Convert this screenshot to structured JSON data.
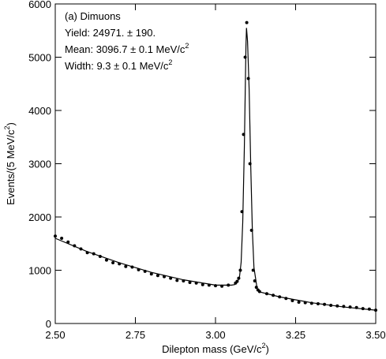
{
  "chart_data": {
    "type": "scatter",
    "annotations": [
      {
        "text": "(a) Dimuons"
      },
      {
        "text": "Yield: 24971. ± 190."
      },
      {
        "text": "Mean: 3096.7 ± 0.1 MeV/c",
        "sup": "2"
      },
      {
        "text": "Width:  9.3 ± 0.1 MeV/c",
        "sup": "2"
      }
    ],
    "xlabel": {
      "text": "Dilepton mass (GeV/c",
      "sup": "2",
      "end": ")"
    },
    "ylabel": {
      "text": "Events/(5 MeV/c",
      "sup": "2",
      "end": ")"
    },
    "x": [
      2.5,
      2.52,
      2.54,
      2.56,
      2.58,
      2.6,
      2.62,
      2.64,
      2.66,
      2.68,
      2.7,
      2.72,
      2.74,
      2.76,
      2.78,
      2.8,
      2.82,
      2.84,
      2.86,
      2.88,
      2.9,
      2.92,
      2.94,
      2.96,
      2.98,
      3.0,
      3.02,
      3.04,
      3.0625,
      3.0675,
      3.0725,
      3.0775,
      3.0825,
      3.0875,
      3.0925,
      3.0975,
      3.1025,
      3.1075,
      3.1125,
      3.1175,
      3.1225,
      3.1275,
      3.1325,
      3.1375,
      3.16,
      3.18,
      3.2,
      3.22,
      3.24,
      3.26,
      3.28,
      3.3,
      3.32,
      3.34,
      3.36,
      3.38,
      3.4,
      3.42,
      3.44,
      3.46,
      3.48,
      3.5
    ],
    "series": [
      {
        "color": "#000000",
        "values": [
          1640,
          1600,
          1530,
          1460,
          1400,
          1330,
          1310,
          1260,
          1190,
          1140,
          1120,
          1070,
          1060,
          1010,
          980,
          930,
          900,
          880,
          850,
          810,
          800,
          770,
          760,
          730,
          720,
          710,
          700,
          720,
          760,
          790,
          850,
          1000,
          2100,
          3550,
          5000,
          5650,
          4600,
          3000,
          1750,
          1000,
          800,
          680,
          630,
          600,
          560,
          530,
          500,
          470,
          430,
          400,
          390,
          380,
          370,
          360,
          340,
          330,
          320,
          310,
          300,
          280,
          270,
          250
        ]
      }
    ],
    "fit": {
      "color": "#000000",
      "x": [
        2.5,
        2.6,
        2.7,
        2.8,
        2.9,
        3.0,
        3.05,
        3.06,
        3.07,
        3.075,
        3.08,
        3.085,
        3.09,
        3.095,
        3.0967,
        3.1,
        3.105,
        3.11,
        3.115,
        3.12,
        3.13,
        3.14,
        3.2,
        3.3,
        3.4,
        3.5
      ],
      "values": [
        1600,
        1350,
        1140,
        960,
        820,
        720,
        720,
        730,
        800,
        880,
        1150,
        1900,
        3300,
        5200,
        5550,
        5300,
        4400,
        2950,
        1750,
        1050,
        650,
        590,
        500,
        390,
        310,
        250
      ]
    },
    "xlim": [
      2.5,
      3.5
    ],
    "xticks": [
      {
        "value": 2.5,
        "label": "2.50"
      },
      2.75,
      {
        "value": 3.0,
        "label": "3.00"
      },
      3.25,
      {
        "value": 3.5,
        "label": "3.50"
      }
    ],
    "ylim": [
      0,
      6000
    ],
    "yticks": [
      0,
      1000,
      2000,
      3000,
      4000,
      5000,
      6000
    ]
  }
}
